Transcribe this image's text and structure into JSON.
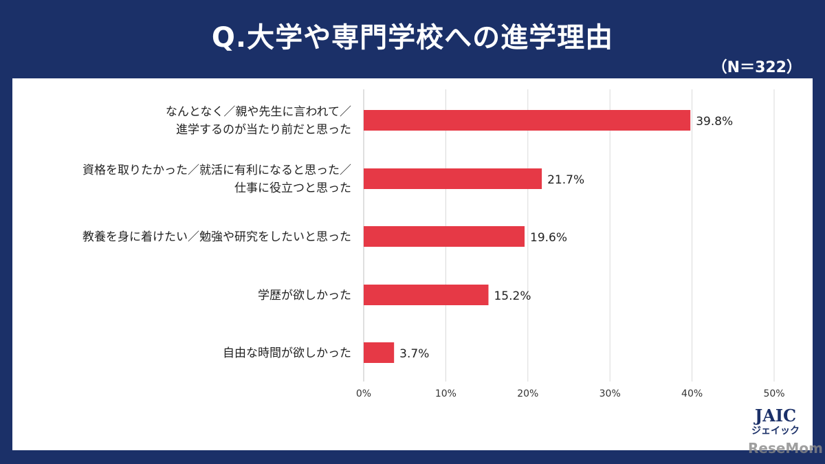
{
  "title": "Q.大学や専門学校への進学理由",
  "sample_size": "（N＝322）",
  "logo": {
    "brand": "JAIC",
    "kana": "ジェイック",
    "watermark": "ReseMom"
  },
  "colors": {
    "background": "#1b3068",
    "bar": "#e63946",
    "grid": "#d9d9d9"
  },
  "chart_data": {
    "type": "bar",
    "orientation": "horizontal",
    "title": "Q.大学や専門学校への進学理由",
    "categories": [
      [
        "なんとなく／親や先生に言われて／",
        "進学するのが当たり前だと思った"
      ],
      [
        "資格を取りたかった／就活に有利になると思った／",
        "仕事に役立つと思った"
      ],
      [
        "教養を身に着けたい／勉強や研究をしたいと思った"
      ],
      [
        "学歴が欲しかった"
      ],
      [
        "自由な時間が欲しかった"
      ]
    ],
    "values": [
      39.8,
      21.7,
      19.6,
      15.2,
      3.7
    ],
    "value_labels": [
      "39.8%",
      "21.7%",
      "19.6%",
      "15.2%",
      "3.7%"
    ],
    "xlim": [
      0,
      50
    ],
    "xticks": [
      0,
      10,
      20,
      30,
      40,
      50
    ],
    "xtick_labels": [
      "0%",
      "10%",
      "20%",
      "30%",
      "40%",
      "50%"
    ],
    "grid": true,
    "xlabel": "",
    "ylabel": ""
  }
}
